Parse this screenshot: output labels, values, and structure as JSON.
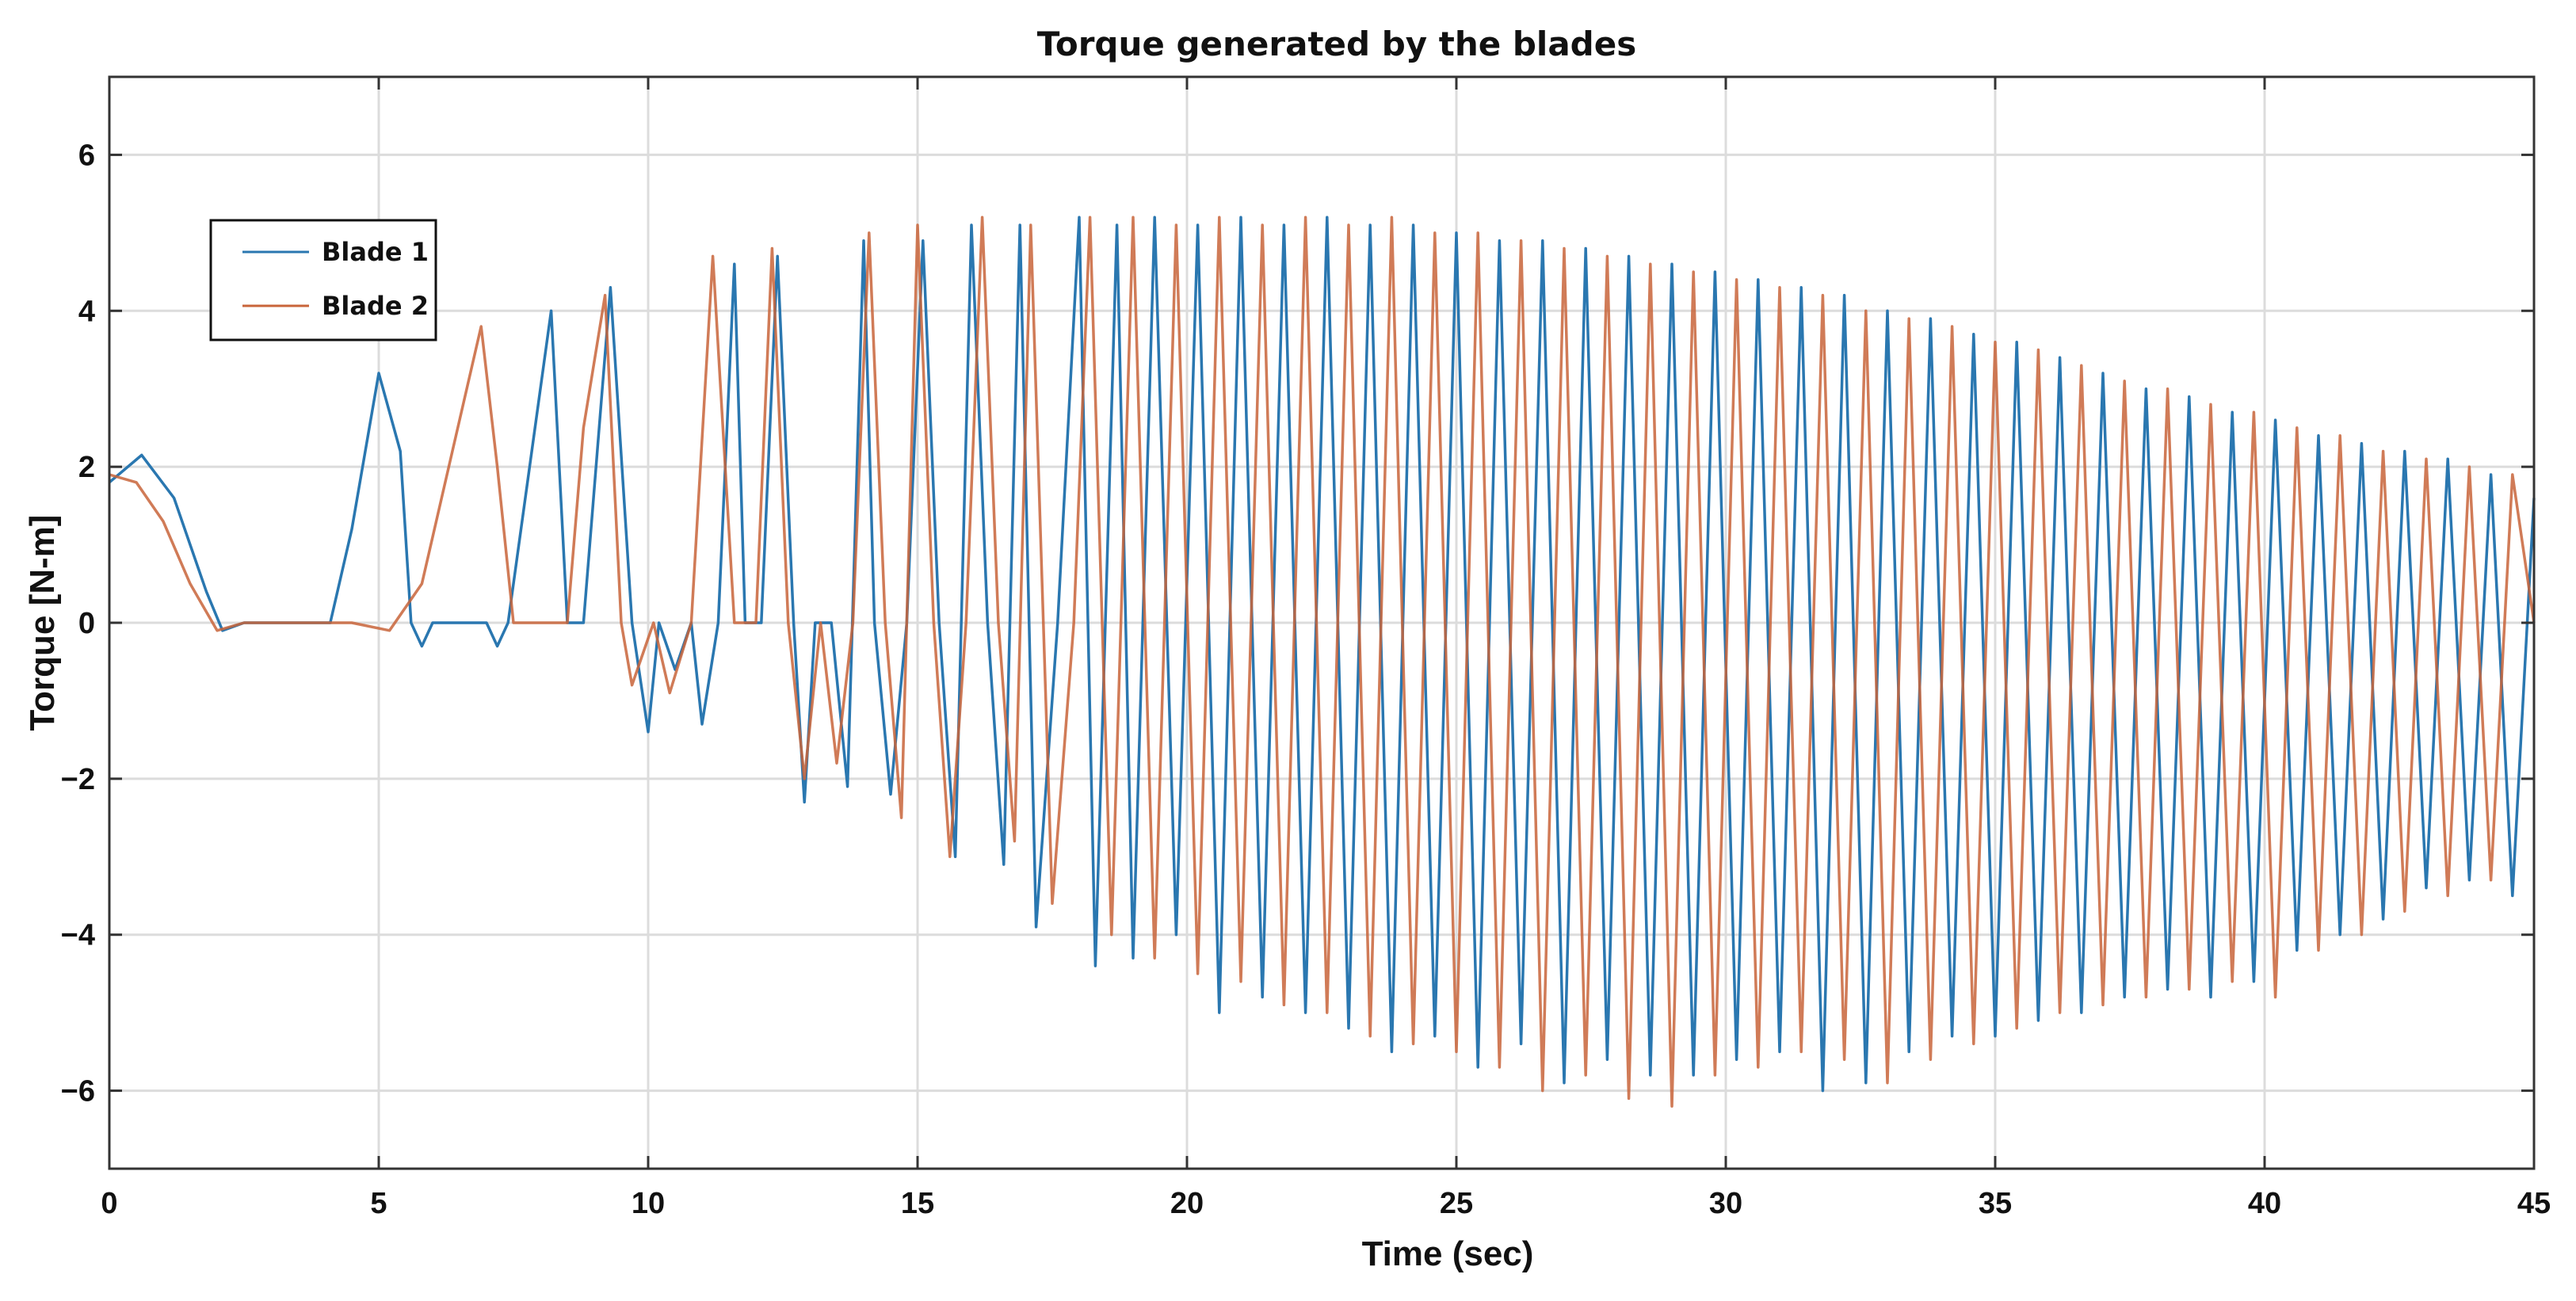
{
  "chart_data": {
    "type": "line",
    "title": "Torque generated by the blades",
    "xlabel": "Time (sec)",
    "ylabel": "Torque [N-m]",
    "xlim": [
      0,
      45
    ],
    "ylim": [
      -7,
      7
    ],
    "xticks": [
      0,
      5,
      10,
      15,
      20,
      25,
      30,
      35,
      40,
      45
    ],
    "yticks": [
      -6,
      -4,
      -2,
      0,
      2,
      4,
      6
    ],
    "xtick_labels": [
      "0",
      "5",
      "10",
      "15",
      "20",
      "25",
      "30",
      "35",
      "40",
      "45"
    ],
    "ytick_labels": [
      "−6",
      "−4",
      "−2",
      "0",
      "2",
      "4",
      "6"
    ],
    "grid": true,
    "legend_position": "upper-left",
    "series": [
      {
        "name": "Blade 1",
        "color": "#2a77b0",
        "x": [
          0,
          0.6,
          1.2,
          1.8,
          2.1,
          2.5,
          3.5,
          4.1,
          4.5,
          5.0,
          5.4,
          5.6,
          5.8,
          6.0,
          7.0,
          7.2,
          7.4,
          7.8,
          8.2,
          8.5,
          8.8,
          9.3,
          9.7,
          10.0,
          10.2,
          10.5,
          10.8,
          11.0,
          11.3,
          11.6,
          11.8,
          12.1,
          12.4,
          12.7,
          12.9,
          13.1,
          13.4,
          13.7,
          14.0,
          14.2,
          14.5,
          14.8,
          15.1,
          15.4,
          15.7,
          16.0,
          16.3,
          16.6,
          16.9,
          17.2,
          17.6,
          18.0,
          18.3,
          18.7,
          19.0,
          19.4,
          19.8,
          20.2,
          20.6,
          21.0,
          21.4,
          21.8,
          22.2,
          22.6,
          23.0,
          23.4,
          23.8,
          24.2,
          24.6,
          25.0,
          25.4,
          25.8,
          26.2,
          26.6,
          27.0,
          27.4,
          27.8,
          28.2,
          28.6,
          29.0,
          29.4,
          29.8,
          30.2,
          30.6,
          31.0,
          31.4,
          31.8,
          32.2,
          32.6,
          33.0,
          33.4,
          33.8,
          34.2,
          34.6,
          35.0,
          35.4,
          35.8,
          36.2,
          36.6,
          37.0,
          37.4,
          37.8,
          38.2,
          38.6,
          39.0,
          39.4,
          39.8,
          40.2,
          40.6,
          41.0,
          41.4,
          41.8,
          42.2,
          42.6,
          43.0,
          43.4,
          43.8,
          44.2,
          44.6,
          45.0
        ],
        "y": [
          1.8,
          2.15,
          1.6,
          0.4,
          -0.1,
          0.0,
          0.0,
          0.0,
          1.2,
          3.2,
          2.2,
          0.0,
          -0.3,
          0.0,
          0.0,
          -0.3,
          0.0,
          2.0,
          4.0,
          0.0,
          0.0,
          4.3,
          0.0,
          -1.4,
          0.0,
          -0.6,
          0.0,
          -1.3,
          0.0,
          4.6,
          0.0,
          0.0,
          4.7,
          0.0,
          -2.3,
          0.0,
          0.0,
          -2.1,
          4.9,
          0.0,
          -2.2,
          0.0,
          4.9,
          0.0,
          -3.0,
          5.1,
          0.0,
          -3.1,
          5.1,
          -3.9,
          0.0,
          5.2,
          -4.4,
          5.1,
          -4.3,
          5.2,
          -4.0,
          5.1,
          -5.0,
          5.2,
          -4.8,
          5.1,
          -5.0,
          5.2,
          -5.2,
          5.1,
          -5.5,
          5.1,
          -5.3,
          5.0,
          -5.7,
          4.9,
          -5.4,
          4.9,
          -5.9,
          4.8,
          -5.6,
          4.7,
          -5.8,
          4.6,
          -5.8,
          4.5,
          -5.6,
          4.4,
          -5.5,
          4.3,
          -6.0,
          4.2,
          -5.9,
          4.0,
          -5.5,
          3.9,
          -5.3,
          3.7,
          -5.3,
          3.6,
          -5.1,
          3.4,
          -5.0,
          3.2,
          -4.8,
          3.0,
          -4.7,
          2.9,
          -4.8,
          2.7,
          -4.6,
          2.6,
          -4.2,
          2.4,
          -4.0,
          2.3,
          -3.8,
          2.2,
          -3.4,
          2.1,
          -3.3,
          1.9,
          -3.5,
          1.6
        ]
      },
      {
        "name": "Blade 2",
        "color": "#c8643a",
        "x": [
          0,
          0.5,
          1.0,
          1.5,
          2.0,
          2.5,
          3.5,
          4.5,
          5.2,
          5.8,
          6.3,
          6.9,
          7.2,
          7.5,
          8.0,
          8.5,
          8.8,
          9.2,
          9.5,
          9.7,
          10.1,
          10.4,
          10.8,
          11.2,
          11.6,
          12.0,
          12.3,
          12.6,
          12.9,
          13.2,
          13.5,
          13.8,
          14.1,
          14.4,
          14.7,
          15.0,
          15.3,
          15.6,
          15.9,
          16.2,
          16.5,
          16.8,
          17.1,
          17.5,
          17.9,
          18.2,
          18.6,
          19.0,
          19.4,
          19.8,
          20.2,
          20.6,
          21.0,
          21.4,
          21.8,
          22.2,
          22.6,
          23.0,
          23.4,
          23.8,
          24.2,
          24.6,
          25.0,
          25.4,
          25.8,
          26.2,
          26.6,
          27.0,
          27.4,
          27.8,
          28.2,
          28.6,
          29.0,
          29.4,
          29.8,
          30.2,
          30.6,
          31.0,
          31.4,
          31.8,
          32.2,
          32.6,
          33.0,
          33.4,
          33.8,
          34.2,
          34.6,
          35.0,
          35.4,
          35.8,
          36.2,
          36.6,
          37.0,
          37.4,
          37.8,
          38.2,
          38.6,
          39.0,
          39.4,
          39.8,
          40.2,
          40.6,
          41.0,
          41.4,
          41.8,
          42.2,
          42.6,
          43.0,
          43.4,
          43.8,
          44.2,
          44.6,
          45.0
        ],
        "y": [
          1.9,
          1.8,
          1.3,
          0.5,
          -0.1,
          0.0,
          0.0,
          0.0,
          -0.1,
          0.5,
          2.0,
          3.8,
          2.0,
          0.0,
          0.0,
          0.0,
          2.5,
          4.2,
          0.0,
          -0.8,
          0.0,
          -0.9,
          0.0,
          4.7,
          0.0,
          0.0,
          4.8,
          0.0,
          -2.0,
          0.0,
          -1.8,
          0.0,
          5.0,
          0.0,
          -2.5,
          5.1,
          0.0,
          -3.0,
          0.0,
          5.2,
          0.0,
          -2.8,
          5.1,
          -3.6,
          0.0,
          5.2,
          -4.0,
          5.2,
          -4.3,
          5.1,
          -4.5,
          5.2,
          -4.6,
          5.1,
          -4.9,
          5.2,
          -5.0,
          5.1,
          -5.3,
          5.2,
          -5.4,
          5.0,
          -5.5,
          5.0,
          -5.7,
          4.9,
          -6.0,
          4.8,
          -5.8,
          4.7,
          -6.1,
          4.6,
          -6.2,
          4.5,
          -5.8,
          4.4,
          -5.7,
          4.3,
          -5.5,
          4.2,
          -5.6,
          4.0,
          -5.9,
          3.9,
          -5.6,
          3.8,
          -5.4,
          3.6,
          -5.2,
          3.5,
          -5.0,
          3.3,
          -4.9,
          3.1,
          -4.8,
          3.0,
          -4.7,
          2.8,
          -4.6,
          2.7,
          -4.8,
          2.5,
          -4.2,
          2.4,
          -4.0,
          2.2,
          -3.7,
          2.1,
          -3.5,
          2.0,
          -3.3,
          1.9,
          0.0
        ]
      }
    ]
  }
}
